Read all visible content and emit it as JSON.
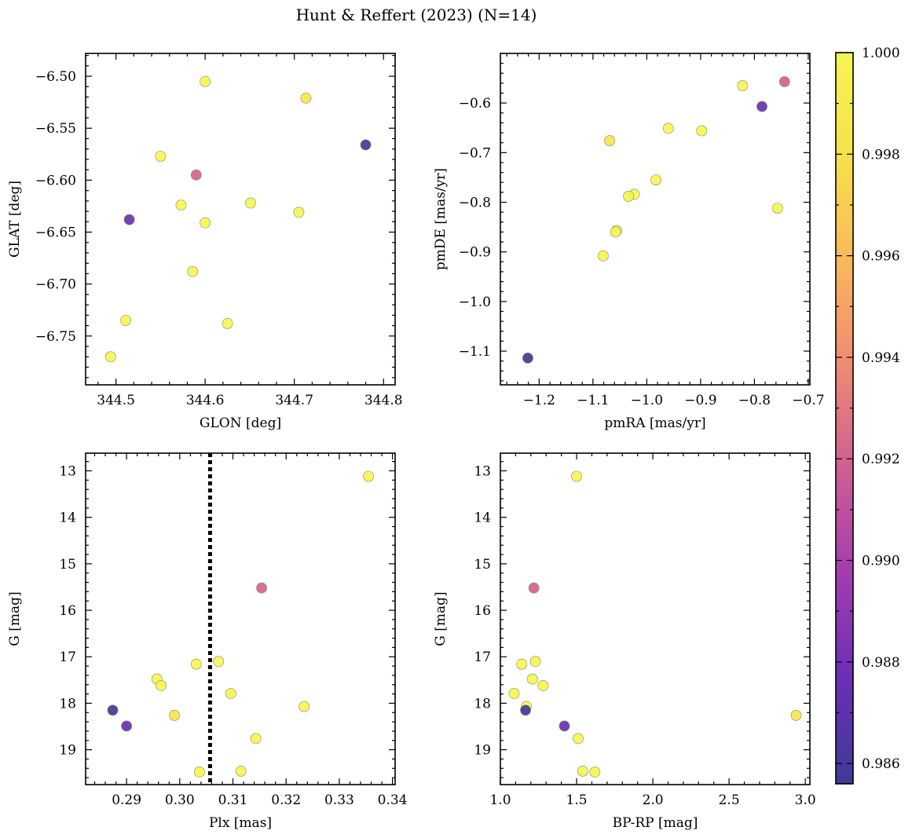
{
  "figure_title": "Hunt & Reffert (2023) (N=14)",
  "colormap": {
    "name": "plasma",
    "range": [
      0.9856,
      1.0
    ],
    "ticks": [
      "0.986",
      "0.988",
      "0.990",
      "0.992",
      "0.994",
      "0.996",
      "0.998",
      "1.000"
    ],
    "tick_values": [
      0.986,
      0.988,
      0.99,
      0.992,
      0.994,
      0.996,
      0.998,
      1.0
    ],
    "stops": [
      "#3e3b96",
      "#6a2fb5",
      "#a23cb0",
      "#cd5e92",
      "#ee8a73",
      "#fbb75c",
      "#f7e04a",
      "#f5f552"
    ]
  },
  "chart_data": [
    {
      "type": "scatter",
      "xlabel": "GLON [deg]",
      "ylabel": "GLAT [deg]",
      "xlim": [
        344.466,
        344.813
      ],
      "ylim": [
        -6.797,
        -6.478
      ],
      "y_inverted": false,
      "xticks": [
        344.5,
        344.6,
        344.7,
        344.8
      ],
      "xtick_labels": [
        "344.5",
        "344.6",
        "344.7",
        "344.8"
      ],
      "yticks": [
        -6.5,
        -6.55,
        -6.6,
        -6.65,
        -6.7,
        -6.75
      ],
      "ytick_labels": [
        "−6.50",
        "−6.55",
        "−6.60",
        "−6.65",
        "−6.70",
        "−6.75"
      ],
      "points": [
        {
          "x": 344.6,
          "y": -6.505,
          "c": 1.0
        },
        {
          "x": 344.713,
          "y": -6.521,
          "c": 0.9985
        },
        {
          "x": 344.78,
          "y": -6.566,
          "c": 0.9857
        },
        {
          "x": 344.55,
          "y": -6.577,
          "c": 1.0
        },
        {
          "x": 344.59,
          "y": -6.595,
          "c": 0.992
        },
        {
          "x": 344.651,
          "y": -6.622,
          "c": 1.0
        },
        {
          "x": 344.573,
          "y": -6.624,
          "c": 1.0
        },
        {
          "x": 344.705,
          "y": -6.631,
          "c": 1.0
        },
        {
          "x": 344.515,
          "y": -6.638,
          "c": 0.9875
        },
        {
          "x": 344.6,
          "y": -6.641,
          "c": 1.0
        },
        {
          "x": 344.586,
          "y": -6.688,
          "c": 1.0
        },
        {
          "x": 344.511,
          "y": -6.735,
          "c": 1.0
        },
        {
          "x": 344.625,
          "y": -6.738,
          "c": 1.0
        },
        {
          "x": 344.494,
          "y": -6.77,
          "c": 1.0
        }
      ]
    },
    {
      "type": "scatter",
      "xlabel": "pmRA [mas/yr]",
      "ylabel": "pmDE [mas/yr]",
      "xlim": [
        -1.272,
        -0.697
      ],
      "ylim": [
        -1.168,
        -0.5
      ],
      "y_inverted": false,
      "xticks": [
        -1.2,
        -1.1,
        -1.0,
        -0.9,
        -0.8,
        -0.7
      ],
      "xtick_labels": [
        "−1.2",
        "−1.1",
        "−1.0",
        "−0.9",
        "−0.8",
        "−0.7"
      ],
      "yticks": [
        -0.6,
        -0.7,
        -0.8,
        -0.9,
        -1.0,
        -1.1
      ],
      "ytick_labels": [
        "−0.6",
        "−0.7",
        "−0.8",
        "−0.9",
        "−1.0",
        "−1.1"
      ],
      "points": [
        {
          "x": -0.744,
          "y": -0.557,
          "c": 0.992
        },
        {
          "x": -0.822,
          "y": -0.565,
          "c": 1.0
        },
        {
          "x": -0.786,
          "y": -0.607,
          "c": 0.9875
        },
        {
          "x": -0.96,
          "y": -0.651,
          "c": 1.0
        },
        {
          "x": -0.898,
          "y": -0.656,
          "c": 1.0
        },
        {
          "x": -1.069,
          "y": -0.676,
          "c": 0.9985
        },
        {
          "x": -0.983,
          "y": -0.755,
          "c": 1.0
        },
        {
          "x": -1.023,
          "y": -0.784,
          "c": 1.0
        },
        {
          "x": -1.034,
          "y": -0.788,
          "c": 1.0
        },
        {
          "x": -0.757,
          "y": -0.812,
          "c": 1.0
        },
        {
          "x": -1.056,
          "y": -0.857,
          "c": 1.0
        },
        {
          "x": -1.058,
          "y": -0.86,
          "c": 1.0
        },
        {
          "x": -1.081,
          "y": -0.908,
          "c": 1.0
        },
        {
          "x": -1.221,
          "y": -1.114,
          "c": 0.9857
        }
      ]
    },
    {
      "type": "scatter",
      "xlabel": "Plx [mas]",
      "ylabel": "G [mag]",
      "xlim": [
        0.2823,
        0.3405
      ],
      "ylim": [
        12.62,
        19.75
      ],
      "y_inverted": true,
      "xticks": [
        0.29,
        0.3,
        0.31,
        0.32,
        0.33,
        0.34
      ],
      "xtick_labels": [
        "0.29",
        "0.30",
        "0.31",
        "0.32",
        "0.33",
        "0.34"
      ],
      "yticks": [
        13,
        14,
        15,
        16,
        17,
        18,
        19
      ],
      "ytick_labels": [
        "13",
        "14",
        "15",
        "16",
        "17",
        "18",
        "19"
      ],
      "vline": {
        "x": 0.3057,
        "style": "dotted"
      },
      "points": [
        {
          "x": 0.3355,
          "y": 13.12,
          "c": 1.0
        },
        {
          "x": 0.3154,
          "y": 15.52,
          "c": 0.992
        },
        {
          "x": 0.3073,
          "y": 17.1,
          "c": 1.0
        },
        {
          "x": 0.3031,
          "y": 17.16,
          "c": 1.0
        },
        {
          "x": 0.2957,
          "y": 17.48,
          "c": 1.0
        },
        {
          "x": 0.2965,
          "y": 17.62,
          "c": 1.0
        },
        {
          "x": 0.3096,
          "y": 17.79,
          "c": 1.0
        },
        {
          "x": 0.3234,
          "y": 18.07,
          "c": 1.0
        },
        {
          "x": 0.2874,
          "y": 18.15,
          "c": 0.9857
        },
        {
          "x": 0.299,
          "y": 18.26,
          "c": 0.9985
        },
        {
          "x": 0.29,
          "y": 18.49,
          "c": 0.9875
        },
        {
          "x": 0.3143,
          "y": 18.76,
          "c": 1.0
        },
        {
          "x": 0.3037,
          "y": 19.48,
          "c": 1.0
        },
        {
          "x": 0.3115,
          "y": 19.46,
          "c": 1.0
        }
      ]
    },
    {
      "type": "scatter",
      "xlabel": "BP-RP [mag]",
      "ylabel": "G [mag]",
      "xlim": [
        1.0,
        3.03
      ],
      "ylim": [
        12.62,
        19.75
      ],
      "y_inverted": true,
      "xticks": [
        1.0,
        1.5,
        2.0,
        2.5,
        3.0
      ],
      "xtick_labels": [
        "1.0",
        "1.5",
        "2.0",
        "2.5",
        "3.0"
      ],
      "yticks": [
        13,
        14,
        15,
        16,
        17,
        18,
        19
      ],
      "ytick_labels": [
        "13",
        "14",
        "15",
        "16",
        "17",
        "18",
        "19"
      ],
      "points": [
        {
          "x": 1.5,
          "y": 13.12,
          "c": 1.0
        },
        {
          "x": 1.22,
          "y": 15.52,
          "c": 0.992
        },
        {
          "x": 1.23,
          "y": 17.1,
          "c": 1.0
        },
        {
          "x": 1.14,
          "y": 17.16,
          "c": 1.0
        },
        {
          "x": 1.21,
          "y": 17.48,
          "c": 1.0
        },
        {
          "x": 1.28,
          "y": 17.62,
          "c": 1.0
        },
        {
          "x": 1.09,
          "y": 17.79,
          "c": 1.0
        },
        {
          "x": 1.17,
          "y": 18.07,
          "c": 1.0
        },
        {
          "x": 1.165,
          "y": 18.15,
          "c": 0.9857
        },
        {
          "x": 2.94,
          "y": 18.26,
          "c": 0.9985
        },
        {
          "x": 1.42,
          "y": 18.49,
          "c": 0.9875
        },
        {
          "x": 1.51,
          "y": 18.76,
          "c": 1.0
        },
        {
          "x": 1.54,
          "y": 19.46,
          "c": 1.0
        },
        {
          "x": 1.62,
          "y": 19.48,
          "c": 1.0
        }
      ]
    }
  ]
}
